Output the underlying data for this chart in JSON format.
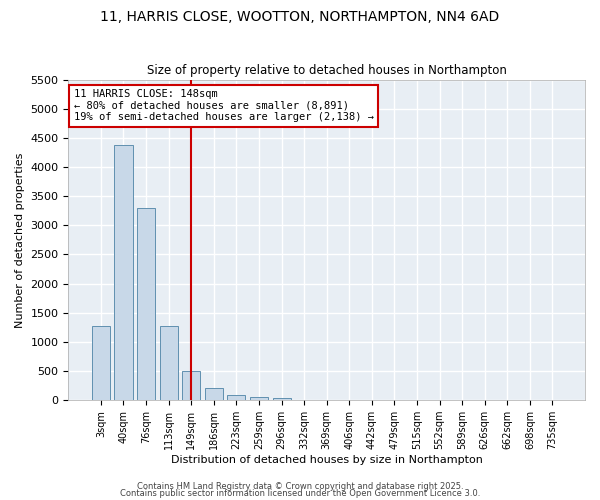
{
  "title1": "11, HARRIS CLOSE, WOOTTON, NORTHAMPTON, NN4 6AD",
  "title2": "Size of property relative to detached houses in Northampton",
  "xlabel": "Distribution of detached houses by size in Northampton",
  "ylabel": "Number of detached properties",
  "bar_labels": [
    "3sqm",
    "40sqm",
    "76sqm",
    "113sqm",
    "149sqm",
    "186sqm",
    "223sqm",
    "259sqm",
    "296sqm",
    "332sqm",
    "369sqm",
    "406sqm",
    "442sqm",
    "479sqm",
    "515sqm",
    "552sqm",
    "589sqm",
    "626sqm",
    "662sqm",
    "698sqm",
    "735sqm"
  ],
  "bar_values": [
    1270,
    4380,
    3300,
    1280,
    500,
    215,
    90,
    55,
    40,
    0,
    0,
    0,
    0,
    0,
    0,
    0,
    0,
    0,
    0,
    0,
    0
  ],
  "bar_color": "#c8d8e8",
  "bar_edge_color": "#6090b0",
  "vline_x_index": 4,
  "vline_color": "#cc0000",
  "annotation_text": "11 HARRIS CLOSE: 148sqm\n← 80% of detached houses are smaller (8,891)\n19% of semi-detached houses are larger (2,138) →",
  "annotation_box_color": "#cc0000",
  "ylim": [
    0,
    5500
  ],
  "yticks": [
    0,
    500,
    1000,
    1500,
    2000,
    2500,
    3000,
    3500,
    4000,
    4500,
    5000,
    5500
  ],
  "bg_color": "#e8eef4",
  "grid_color": "#ffffff",
  "footer1": "Contains HM Land Registry data © Crown copyright and database right 2025.",
  "footer2": "Contains public sector information licensed under the Open Government Licence 3.0."
}
